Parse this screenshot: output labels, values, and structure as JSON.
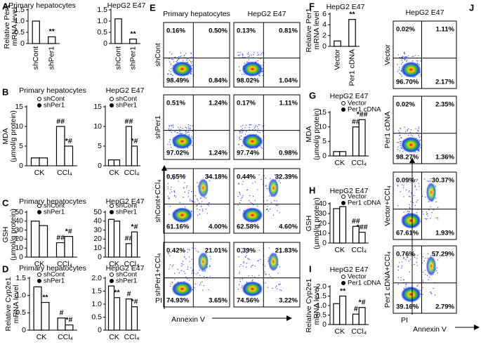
{
  "letters": [
    "A",
    "B",
    "C",
    "D",
    "E",
    "F",
    "G",
    "H",
    "I",
    "J"
  ],
  "bar_charts": [
    {
      "title": "Primary hepatocytes",
      "ylabel": [
        "Relative Per1",
        "mRNA level"
      ],
      "ylim": [
        0,
        1.5
      ],
      "yticks": [
        0,
        0.5,
        {
          "value": 1,
          "label": "1.0"
        },
        1.5
      ],
      "categories": [
        "shCont",
        "shPer1"
      ],
      "series": [
        {
          "values": [
            1.0,
            0.3
          ],
          "annotations": [
            null,
            "**"
          ]
        }
      ]
    },
    {
      "title": "HepG2 E47",
      "ylim": [
        0,
        1.5
      ],
      "yticks": [
        0,
        0.5,
        {
          "value": 1,
          "label": "1.0"
        },
        1.5
      ],
      "categories": [
        "shCont",
        "shPer1"
      ],
      "series": [
        {
          "values": [
            1.1,
            0.2
          ],
          "annotations": [
            null,
            "**"
          ]
        }
      ]
    },
    {
      "title": "Primary hepatocytes",
      "ylabel": [
        "MDA",
        "(μmol/g protein)"
      ],
      "ylim": [
        0,
        15
      ],
      "yticks": [
        0,
        5,
        10,
        15
      ],
      "categories": [
        "CK",
        "CCl₄"
      ],
      "series": [
        {
          "name": "shCont",
          "values": [
            2,
            10
          ],
          "annotations": [
            null,
            "##"
          ]
        },
        {
          "name": "shPer1",
          "values": [
            2,
            5
          ],
          "annotations": [
            null,
            "*#"
          ]
        }
      ]
    },
    {
      "title": "HepG2 E47",
      "ylim": [
        0,
        15
      ],
      "yticks": [
        0,
        5,
        10,
        15
      ],
      "categories": [
        "CK",
        "CCl₄"
      ],
      "series": [
        {
          "name": "shCont",
          "values": [
            1.5,
            10
          ],
          "annotations": [
            null,
            "##"
          ]
        },
        {
          "name": "shPer1",
          "values": [
            1.5,
            5
          ],
          "annotations": [
            null,
            "*#"
          ]
        }
      ]
    },
    {
      "title": "Primary hepatocytes",
      "ylabel": [
        "GSH",
        "(μmol/g protein)"
      ],
      "ylim": [
        0,
        50
      ],
      "yticks": [
        0,
        10,
        20,
        30,
        40,
        50
      ],
      "categories": [
        "CK",
        "CCl₄"
      ],
      "series": [
        {
          "name": "shCont",
          "values": [
            40,
            16
          ],
          "annotations": [
            null,
            "##"
          ]
        },
        {
          "name": "shPer1",
          "values": [
            35,
            23
          ],
          "annotations": [
            null,
            "*#"
          ]
        }
      ]
    },
    {
      "title": "HepG2 E47",
      "ylim": [
        0,
        50
      ],
      "yticks": [
        0,
        10,
        20,
        30,
        40,
        50
      ],
      "categories": [
        "CK",
        "CCl₄"
      ],
      "series": [
        {
          "name": "shCont",
          "values": [
            42,
            15
          ],
          "annotations": [
            null,
            "##"
          ]
        },
        {
          "name": "shPer1",
          "values": [
            40,
            28
          ],
          "annotations": [
            null,
            "*#"
          ]
        }
      ]
    },
    {
      "title": "Primary hepatocytes",
      "ylabel": [
        "Relative Cyp2e1",
        "mRNA level"
      ],
      "ylim": [
        0,
        1.5
      ],
      "yticks": [
        0,
        0.5,
        {
          "value": 1,
          "label": "1.0"
        },
        1.5
      ],
      "categories": [
        "CK",
        "CCl₄"
      ],
      "series": [
        {
          "name": "shCont",
          "values": [
            1.25,
            0.35
          ],
          "annotations": [
            null,
            "#"
          ]
        },
        {
          "name": "shPer1",
          "values": [
            0.8,
            0.15
          ],
          "annotations": [
            "**",
            "*#"
          ]
        }
      ]
    },
    {
      "title": "HepG2 E47",
      "ylim": [
        0,
        2
      ],
      "yticks": [
        0,
        0.5,
        {
          "value": 1,
          "label": "1.0"
        },
        1.5,
        {
          "value": 2,
          "label": "2.0"
        }
      ],
      "categories": [
        "CK",
        "CCl₄"
      ],
      "series": [
        {
          "name": "shCont",
          "values": [
            1.7,
            1.2
          ],
          "annotations": [
            null,
            "#"
          ]
        },
        {
          "name": "shPer1",
          "values": [
            1.25,
            0.9
          ],
          "annotations": [
            "**",
            "*#"
          ]
        }
      ]
    },
    {
      "title": "HepG2 E47",
      "ylabel": [
        "Relative Per1",
        "mRNA level"
      ],
      "ylim": [
        0,
        6
      ],
      "yticks": [
        0,
        2,
        4,
        6
      ],
      "categories": [
        "Vector",
        "Per1 cDNA"
      ],
      "series": [
        {
          "values": [
            1.0,
            5.0
          ],
          "annotations": [
            null,
            "**"
          ]
        }
      ]
    },
    {
      "title": "HepG2 E47",
      "ylabel": [
        "MDA",
        "(μmol/g protein)"
      ],
      "ylim": [
        0,
        15
      ],
      "yticks": [
        0,
        5,
        10,
        15
      ],
      "categories": [
        "CK",
        "CCl₄"
      ],
      "series": [
        {
          "name": "Vector",
          "values": [
            1.5,
            10
          ],
          "annotations": [
            null,
            "##"
          ]
        },
        {
          "name": "Per1 cDNA",
          "values": [
            1.5,
            12.5
          ],
          "annotations": [
            null,
            "*##"
          ]
        }
      ]
    },
    {
      "title": "HepG2 E47",
      "ylabel": [
        "GSH",
        "(μmol/g protein)"
      ],
      "ylim": [
        0,
        40
      ],
      "yticks": [
        0,
        10,
        20,
        30,
        40
      ],
      "categories": [
        "CK",
        "CCl₄"
      ],
      "series": [
        {
          "name": "Vector",
          "values": [
            35,
            17
          ],
          "annotations": [
            null,
            "##"
          ]
        },
        {
          "name": "Per1 cDNA",
          "values": [
            37,
            11
          ],
          "annotations": [
            null,
            "*##"
          ]
        }
      ]
    },
    {
      "title": "HepG2 E47",
      "ylabel": [
        "Relative Cyp2e1",
        "mRNA level"
      ],
      "ylim": [
        0,
        2
      ],
      "yticks": [
        0,
        0.5,
        {
          "value": 1,
          "label": "1.0"
        },
        1.5,
        {
          "value": 2,
          "label": "2.0"
        }
      ],
      "categories": [
        "CK",
        "CCl₄"
      ],
      "series": [
        {
          "name": "Vector",
          "values": [
            1.1,
            0.55
          ],
          "annotations": [
            null,
            "#"
          ]
        },
        {
          "name": "Per1 cDNA",
          "values": [
            1.5,
            0.9
          ],
          "annotations": [
            "**",
            "*#"
          ]
        }
      ]
    }
  ],
  "flow": [
    {
      "columns": [
        "Primary hepatocytes",
        "HepG2 E47"
      ],
      "rows": [
        "shCont",
        "shPer1",
        "shCont+CCl₄",
        "shPer1+CCl₄"
      ],
      "x_label": "Annexin V",
      "y_label": "PI",
      "quadrants": [
        [
          [
            "0.16%",
            "0.50%",
            "98.49%",
            "0.84%"
          ],
          [
            "0.13%",
            "0.81%",
            "98.02%",
            "1.04%"
          ]
        ],
        [
          [
            "0.51%",
            "1.24%",
            "97.02%",
            "1.24%"
          ],
          [
            "0.17%",
            "1.11%",
            "97.74%",
            "0.98%"
          ]
        ],
        [
          [
            "0.65%",
            "34.18%",
            "61.16%",
            "4.00%"
          ],
          [
            "0.44%",
            "32.39%",
            "62.58%",
            "4.60%"
          ]
        ],
        [
          [
            "0.42%",
            "21.01%",
            "74.93%",
            "3.65%"
          ],
          [
            "0.39%",
            "21.83%",
            "74.56%",
            "3.22%"
          ]
        ]
      ]
    },
    {
      "columns": [
        "HepG2 E47"
      ],
      "rows": [
        "Vector",
        "Per1 cDNA",
        "Vector+CCl₄",
        "Per1 cDNA+CCl₄"
      ],
      "x_label": "Annexin V",
      "y_label": "PI",
      "quadrants": [
        [
          [
            "0.02%",
            "1.11%",
            "96.70%",
            "2.17%"
          ]
        ],
        [
          [
            "0.02%",
            "2.35%",
            "98.27%",
            "1.36%"
          ]
        ],
        [
          [
            "0.09%",
            "30.37%",
            "67.61%",
            "1.93%"
          ]
        ],
        [
          [
            "0.76%",
            "57.29%",
            "39.16%",
            "2.79%"
          ]
        ]
      ]
    }
  ]
}
